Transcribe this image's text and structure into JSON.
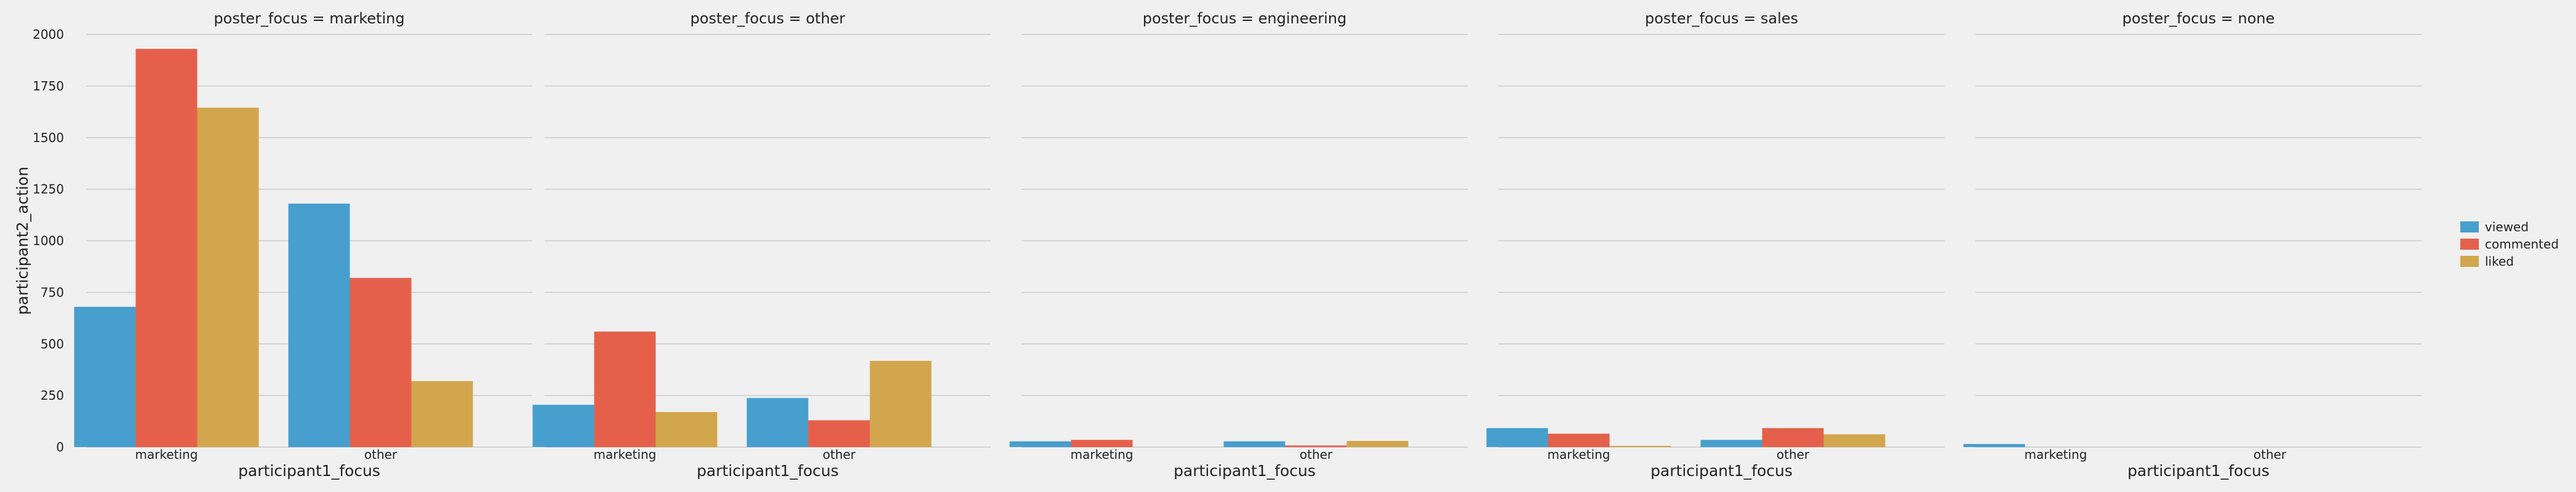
{
  "colors": {
    "background": "#f0f0f0",
    "grid": "#cbcbcb",
    "viewed": "#479fce",
    "commented": "#e5604a",
    "liked": "#d2a64d"
  },
  "chart_data": {
    "type": "bar",
    "layout": "faceted",
    "facet_variable": "poster_focus",
    "ylabel": "participant2_action",
    "xlabel": "participant1_focus",
    "ylim": [
      0,
      2000
    ],
    "yticks": [
      0,
      250,
      500,
      750,
      1000,
      1250,
      1500,
      1750,
      2000
    ],
    "grid": true,
    "legend_position": "right",
    "legend": [
      "viewed",
      "commented",
      "liked"
    ],
    "categories": [
      "marketing",
      "other"
    ],
    "panels": [
      {
        "title": "poster_focus = marketing",
        "series": [
          {
            "name": "viewed",
            "color": "#479fce",
            "values": [
              680,
              1180
            ]
          },
          {
            "name": "commented",
            "color": "#e5604a",
            "values": [
              1930,
              820
            ]
          },
          {
            "name": "liked",
            "color": "#d2a64d",
            "values": [
              1645,
              320
            ]
          }
        ]
      },
      {
        "title": "poster_focus = other",
        "series": [
          {
            "name": "viewed",
            "color": "#479fce",
            "values": [
              205,
              238
            ]
          },
          {
            "name": "commented",
            "color": "#e5604a",
            "values": [
              560,
              130
            ]
          },
          {
            "name": "liked",
            "color": "#d2a64d",
            "values": [
              170,
              418
            ]
          }
        ]
      },
      {
        "title": "poster_focus = engineering",
        "series": [
          {
            "name": "viewed",
            "color": "#479fce",
            "values": [
              28,
              28
            ]
          },
          {
            "name": "commented",
            "color": "#e5604a",
            "values": [
              35,
              8
            ]
          },
          {
            "name": "liked",
            "color": "#d2a64d",
            "values": [
              0,
              30
            ]
          }
        ]
      },
      {
        "title": "poster_focus = sales",
        "series": [
          {
            "name": "viewed",
            "color": "#479fce",
            "values": [
              92,
              35
            ]
          },
          {
            "name": "commented",
            "color": "#e5604a",
            "values": [
              65,
              92
            ]
          },
          {
            "name": "liked",
            "color": "#d2a64d",
            "values": [
              6,
              62
            ]
          }
        ]
      },
      {
        "title": "poster_focus = none",
        "series": [
          {
            "name": "viewed",
            "color": "#479fce",
            "values": [
              15,
              0
            ]
          },
          {
            "name": "commented",
            "color": "#e5604a",
            "values": [
              0,
              0
            ]
          },
          {
            "name": "liked",
            "color": "#d2a64d",
            "values": [
              0,
              0
            ]
          }
        ]
      }
    ]
  }
}
